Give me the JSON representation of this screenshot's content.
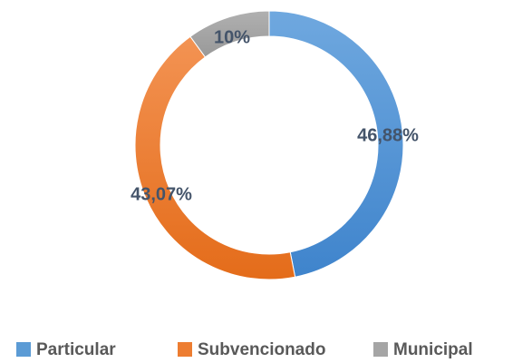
{
  "chart_data": {
    "type": "donut",
    "categories": [
      "Particular",
      "Subvencionado",
      "Municipal"
    ],
    "values": [
      46.88,
      43.07,
      10
    ],
    "value_labels": [
      "46,88%",
      "43,07%",
      "10%"
    ],
    "colors": [
      "#5b9bd5",
      "#ed7d31",
      "#a5a5a5"
    ],
    "legend": "bottom"
  }
}
